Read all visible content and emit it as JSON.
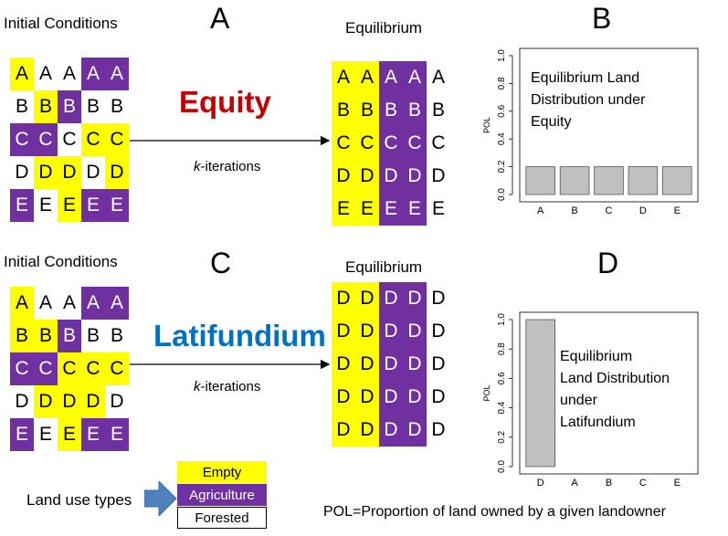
{
  "panel_a": {
    "letter": "A",
    "initial_title": "Initial Conditions",
    "equilibrium_title": "Equilibrium",
    "scenario": "Equity",
    "scenario_color": "#c00000",
    "iterations_k": "k",
    "iterations_suffix": "-iterations",
    "initial_grid": [
      [
        [
          "A",
          "E"
        ],
        [
          "A",
          "F"
        ],
        [
          "A",
          "F"
        ],
        [
          "A",
          "A"
        ],
        [
          "A",
          "A"
        ]
      ],
      [
        [
          "B",
          "F"
        ],
        [
          "B",
          "E"
        ],
        [
          "B",
          "A"
        ],
        [
          "B",
          "F"
        ],
        [
          "B",
          "F"
        ]
      ],
      [
        [
          "C",
          "A"
        ],
        [
          "C",
          "A"
        ],
        [
          "C",
          "F"
        ],
        [
          "C",
          "E"
        ],
        [
          "C",
          "E"
        ]
      ],
      [
        [
          "D",
          "F"
        ],
        [
          "D",
          "E"
        ],
        [
          "D",
          "E"
        ],
        [
          "D",
          "F"
        ],
        [
          "D",
          "E"
        ]
      ],
      [
        [
          "E",
          "A"
        ],
        [
          "E",
          "F"
        ],
        [
          "E",
          "E"
        ],
        [
          "E",
          "A"
        ],
        [
          "E",
          "A"
        ]
      ]
    ],
    "equilibrium_grid": [
      [
        [
          "A",
          "E"
        ],
        [
          "A",
          "E"
        ],
        [
          "A",
          "A"
        ],
        [
          "A",
          "A"
        ],
        [
          "A",
          "F"
        ]
      ],
      [
        [
          "B",
          "E"
        ],
        [
          "B",
          "E"
        ],
        [
          "B",
          "A"
        ],
        [
          "B",
          "A"
        ],
        [
          "B",
          "F"
        ]
      ],
      [
        [
          "C",
          "E"
        ],
        [
          "C",
          "E"
        ],
        [
          "C",
          "A"
        ],
        [
          "C",
          "A"
        ],
        [
          "C",
          "F"
        ]
      ],
      [
        [
          "D",
          "E"
        ],
        [
          "D",
          "E"
        ],
        [
          "D",
          "A"
        ],
        [
          "D",
          "A"
        ],
        [
          "D",
          "F"
        ]
      ],
      [
        [
          "E",
          "E"
        ],
        [
          "E",
          "E"
        ],
        [
          "E",
          "A"
        ],
        [
          "E",
          "A"
        ],
        [
          "E",
          "F"
        ]
      ]
    ]
  },
  "panel_c": {
    "letter": "C",
    "initial_title": "Initial Conditions",
    "equilibrium_title": "Equilibrium",
    "scenario": "Latifundium",
    "scenario_color": "#0070c0",
    "iterations_k": "k",
    "iterations_suffix": "-iterations",
    "initial_grid": [
      [
        [
          "A",
          "E"
        ],
        [
          "A",
          "F"
        ],
        [
          "A",
          "F"
        ],
        [
          "A",
          "A"
        ],
        [
          "A",
          "A"
        ]
      ],
      [
        [
          "B",
          "E"
        ],
        [
          "B",
          "E"
        ],
        [
          "B",
          "A"
        ],
        [
          "B",
          "F"
        ],
        [
          "B",
          "F"
        ]
      ],
      [
        [
          "C",
          "A"
        ],
        [
          "C",
          "A"
        ],
        [
          "C",
          "E"
        ],
        [
          "C",
          "E"
        ],
        [
          "C",
          "E"
        ]
      ],
      [
        [
          "D",
          "F"
        ],
        [
          "D",
          "E"
        ],
        [
          "D",
          "E"
        ],
        [
          "D",
          "E"
        ],
        [
          "D",
          "F"
        ]
      ],
      [
        [
          "E",
          "A"
        ],
        [
          "E",
          "F"
        ],
        [
          "E",
          "E"
        ],
        [
          "E",
          "A"
        ],
        [
          "E",
          "A"
        ]
      ]
    ],
    "equilibrium_grid": [
      [
        [
          "D",
          "E"
        ],
        [
          "D",
          "E"
        ],
        [
          "D",
          "A"
        ],
        [
          "D",
          "A"
        ],
        [
          "D",
          "F"
        ]
      ],
      [
        [
          "D",
          "E"
        ],
        [
          "D",
          "E"
        ],
        [
          "D",
          "A"
        ],
        [
          "D",
          "A"
        ],
        [
          "D",
          "F"
        ]
      ],
      [
        [
          "D",
          "E"
        ],
        [
          "D",
          "E"
        ],
        [
          "D",
          "A"
        ],
        [
          "D",
          "A"
        ],
        [
          "D",
          "F"
        ]
      ],
      [
        [
          "D",
          "E"
        ],
        [
          "D",
          "E"
        ],
        [
          "D",
          "A"
        ],
        [
          "D",
          "A"
        ],
        [
          "D",
          "F"
        ]
      ],
      [
        [
          "D",
          "E"
        ],
        [
          "D",
          "E"
        ],
        [
          "D",
          "A"
        ],
        [
          "D",
          "A"
        ],
        [
          "D",
          "F"
        ]
      ]
    ]
  },
  "chart_data": [
    {
      "panel": "B",
      "type": "bar",
      "categories": [
        "A",
        "B",
        "C",
        "D",
        "E"
      ],
      "values": [
        0.2,
        0.2,
        0.2,
        0.2,
        0.2
      ],
      "ylabel": "POL",
      "ylim": [
        0,
        1.0
      ],
      "yticks": [
        "0.0",
        "0.2",
        "0.4",
        "0.6",
        "0.8",
        "1.0"
      ],
      "annotation": [
        "Equilibrium Land",
        "Distribution under",
        "Equity"
      ],
      "bar_color": "#c0c0c0"
    },
    {
      "panel": "D",
      "type": "bar",
      "categories": [
        "D",
        "A",
        "B",
        "C",
        "E"
      ],
      "values": [
        1.0,
        0,
        0,
        0,
        0
      ],
      "ylabel": "POL",
      "ylim": [
        0,
        1.0
      ],
      "yticks": [
        "0.0",
        "0.2",
        "0.4",
        "0.6",
        "0.8",
        "1.0"
      ],
      "annotation": [
        "Equilibrium",
        "Land Distribution",
        "under",
        "Latifundium"
      ],
      "bar_color": "#c0c0c0"
    }
  ],
  "legend": {
    "title": "Land use types",
    "items": [
      {
        "label": "Empty",
        "color": "#ffff00",
        "text_color": "#000000"
      },
      {
        "label": "Agriculture",
        "color": "#7030a0",
        "text_color": "#ffffff"
      },
      {
        "label": "Forested",
        "color": "#ffffff",
        "text_color": "#000000"
      }
    ],
    "arrow_color": "#4f81bd"
  },
  "footnote": "POL=Proportion of land owned by a given landowner"
}
